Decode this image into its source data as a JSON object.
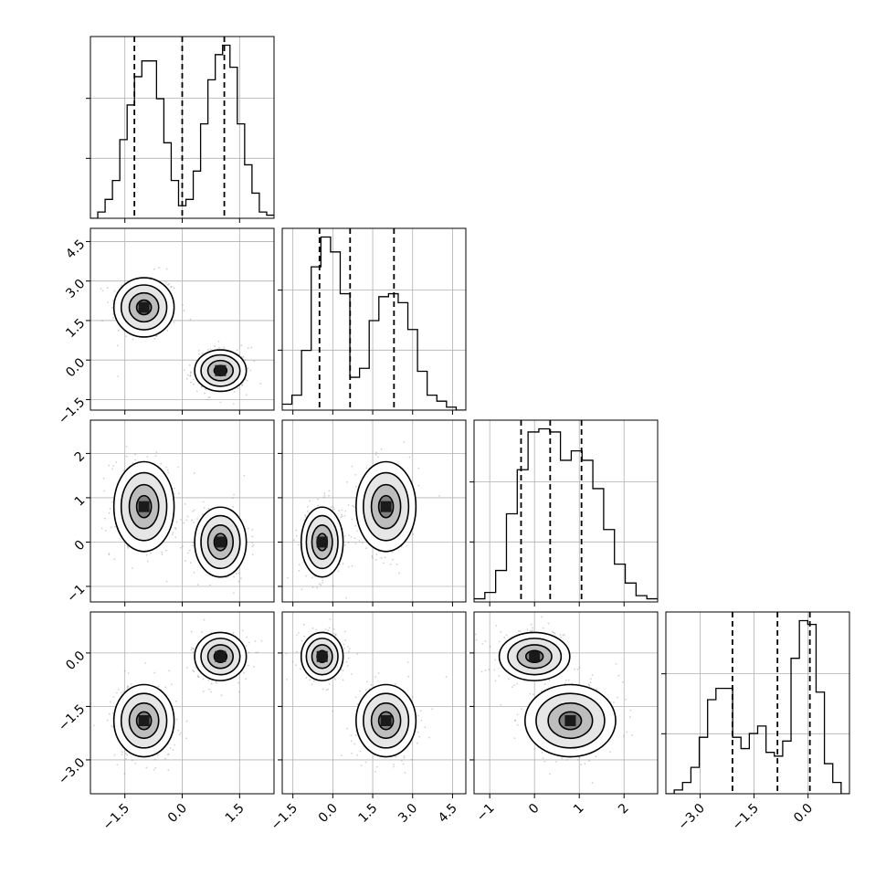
{
  "chart_data": {
    "type": "corner",
    "title": "",
    "parameters": [
      "",
      "",
      "",
      ""
    ],
    "axes": [
      {
        "range": [
          -2.4,
          2.4
        ],
        "ticks": [
          -1.5,
          0.0,
          1.5
        ],
        "tick_labels": [
          "−1.5",
          "0.0",
          "1.5"
        ]
      },
      {
        "range": [
          -1.9,
          5.0
        ],
        "ticks": [
          -1.5,
          0.0,
          1.5,
          3.0,
          4.5
        ],
        "tick_labels": [
          "−1.5",
          "0.0",
          "1.5",
          "3.0",
          "4.5"
        ]
      },
      {
        "range": [
          -1.35,
          2.75
        ],
        "ticks": [
          -1,
          0,
          1,
          2
        ],
        "tick_labels": [
          "−1",
          "0",
          "1",
          "2"
        ]
      },
      {
        "range": [
          -3.95,
          1.15
        ],
        "ticks": [
          -3.0,
          -1.5,
          0.0
        ],
        "tick_labels": [
          "−3.0",
          "−1.5",
          "0.0"
        ]
      }
    ],
    "quantiles": [
      [
        -1.25,
        0.0,
        1.1
      ],
      [
        -0.5,
        0.65,
        2.3
      ],
      [
        -0.3,
        0.35,
        1.05
      ],
      [
        -2.1,
        -0.85,
        0.05
      ]
    ],
    "histograms": [
      {
        "counts": [
          0,
          2,
          6,
          12,
          25,
          36,
          45,
          50,
          50,
          38,
          24,
          12,
          4,
          6,
          15,
          30,
          44,
          52,
          55,
          48,
          30,
          17,
          8,
          2,
          1
        ]
      },
      {
        "counts": [
          2,
          5,
          20,
          48,
          58,
          53,
          39,
          11,
          14,
          30,
          38,
          39,
          36,
          27,
          13,
          5,
          3,
          1,
          0
        ]
      },
      {
        "counts": [
          1,
          3,
          10,
          28,
          42,
          54,
          55,
          54,
          45,
          48,
          45,
          36,
          23,
          12,
          6,
          2,
          1
        ]
      },
      {
        "counts": [
          0,
          1,
          3,
          7,
          15,
          25,
          28,
          28,
          15,
          12,
          16,
          18,
          11,
          10,
          14,
          36,
          46,
          45,
          27,
          8,
          3,
          0
        ]
      }
    ],
    "components": [
      {
        "means": [
          -1.0,
          2.0,
          0.8,
          -1.9
        ],
        "sd": [
          0.35,
          0.5,
          0.45,
          0.45
        ]
      },
      {
        "means": [
          1.0,
          -0.4,
          0.0,
          -0.1
        ],
        "sd": [
          0.3,
          0.35,
          0.35,
          0.3
        ]
      }
    ],
    "contour_levels": [
      {
        "scale": 0.55,
        "fill": "#7f7f7f"
      },
      {
        "scale": 1.1,
        "fill": "#bdbdbd"
      },
      {
        "scale": 1.7,
        "fill": "#e6e6e6"
      },
      {
        "scale": 2.25,
        "fill": "#ffffff"
      }
    ],
    "colors": {
      "line": "#000000",
      "grid": "#b0b0b0",
      "points": "#7a7a7a"
    }
  }
}
